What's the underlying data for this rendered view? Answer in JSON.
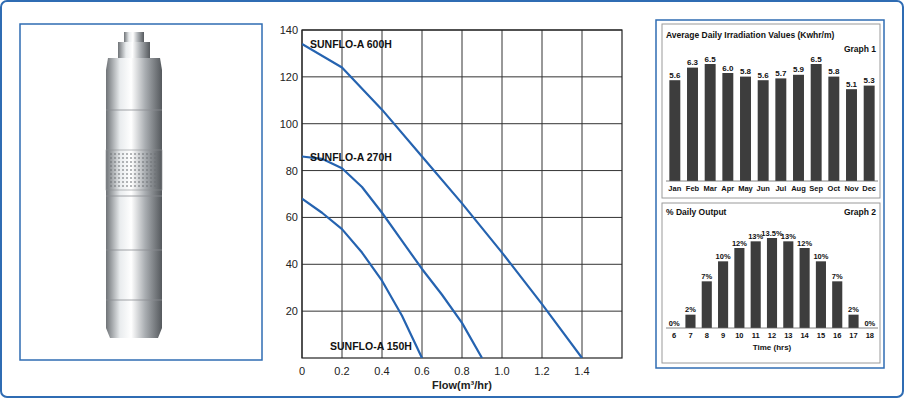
{
  "chart_data": [
    {
      "type": "line",
      "x_label": "Flow(m³/hr)",
      "xlim": [
        0,
        1.6
      ],
      "xticks": [
        0,
        0.2,
        0.4,
        0.6,
        0.8,
        {
          "value": 1,
          "label": "1.0"
        },
        1.2,
        1.4
      ],
      "ylim": [
        0,
        140
      ],
      "yticks": [
        20,
        40,
        60,
        80,
        100,
        120,
        140
      ],
      "grid": true,
      "series": [
        {
          "name": "SUNFLO-A 600H",
          "color": "#2563b0",
          "x": [
            0,
            0.2,
            0.4,
            0.6,
            0.8,
            1.0,
            1.2,
            1.4
          ],
          "values": [
            134,
            124,
            106,
            86,
            66,
            45,
            23,
            0
          ]
        },
        {
          "name": "SUNFLO-A 270H",
          "color": "#2563b0",
          "x": [
            0,
            0.1,
            0.2,
            0.3,
            0.4,
            0.5,
            0.6,
            0.7,
            0.8,
            0.9
          ],
          "values": [
            86,
            85,
            81,
            73,
            62,
            50,
            38,
            27,
            15,
            0
          ]
        },
        {
          "name": "SUNFLO-A 150H",
          "color": "#2563b0",
          "x": [
            0,
            0.1,
            0.2,
            0.3,
            0.4,
            0.5,
            0.6
          ],
          "values": [
            68,
            62,
            55,
            45,
            33,
            18,
            0
          ]
        }
      ]
    },
    {
      "type": "bar",
      "title": "Average Daily Irradiation Values (Kwhr/m)",
      "subtitle": "Graph 1",
      "categories": [
        "Jan",
        "Feb",
        "Mar",
        "Apr",
        "May",
        "Jun",
        "Jul",
        "Aug",
        "Sep",
        "Oct",
        "Nov",
        "Dec"
      ],
      "values": [
        5.6,
        6.3,
        6.5,
        6.0,
        5.8,
        5.6,
        5.7,
        5.9,
        6.5,
        5.8,
        5.1,
        5.3
      ],
      "value_labels": [
        "5.6",
        "6.3",
        "6.5",
        "6.0",
        "5.8",
        "5.6",
        "5.7",
        "5.9",
        "6.5",
        "5.8",
        "5.1",
        "5.3"
      ],
      "color": "#3d3d3d",
      "ylim": [
        0,
        7
      ],
      "data_labels": true,
      "tick_labels": "x"
    },
    {
      "type": "bar",
      "title": "% Daily Output",
      "subtitle": "Graph 2",
      "x_label": "Time (hrs)",
      "categories": [
        6,
        7,
        8,
        9,
        10,
        11,
        12,
        13,
        14,
        15,
        16,
        17,
        18
      ],
      "values": [
        0,
        2,
        7,
        10,
        12,
        13,
        13.5,
        13,
        12,
        10,
        7,
        2,
        0
      ],
      "value_labels": [
        "0%",
        "2%",
        "7%",
        "10%",
        "12%",
        "13%",
        "13.5%",
        "13%",
        "12%",
        "10%",
        "7%",
        "2%",
        "0%"
      ],
      "color": "#3d3d3d",
      "ylim": [
        0,
        15
      ],
      "data_labels": true,
      "tick_labels": "x"
    }
  ]
}
